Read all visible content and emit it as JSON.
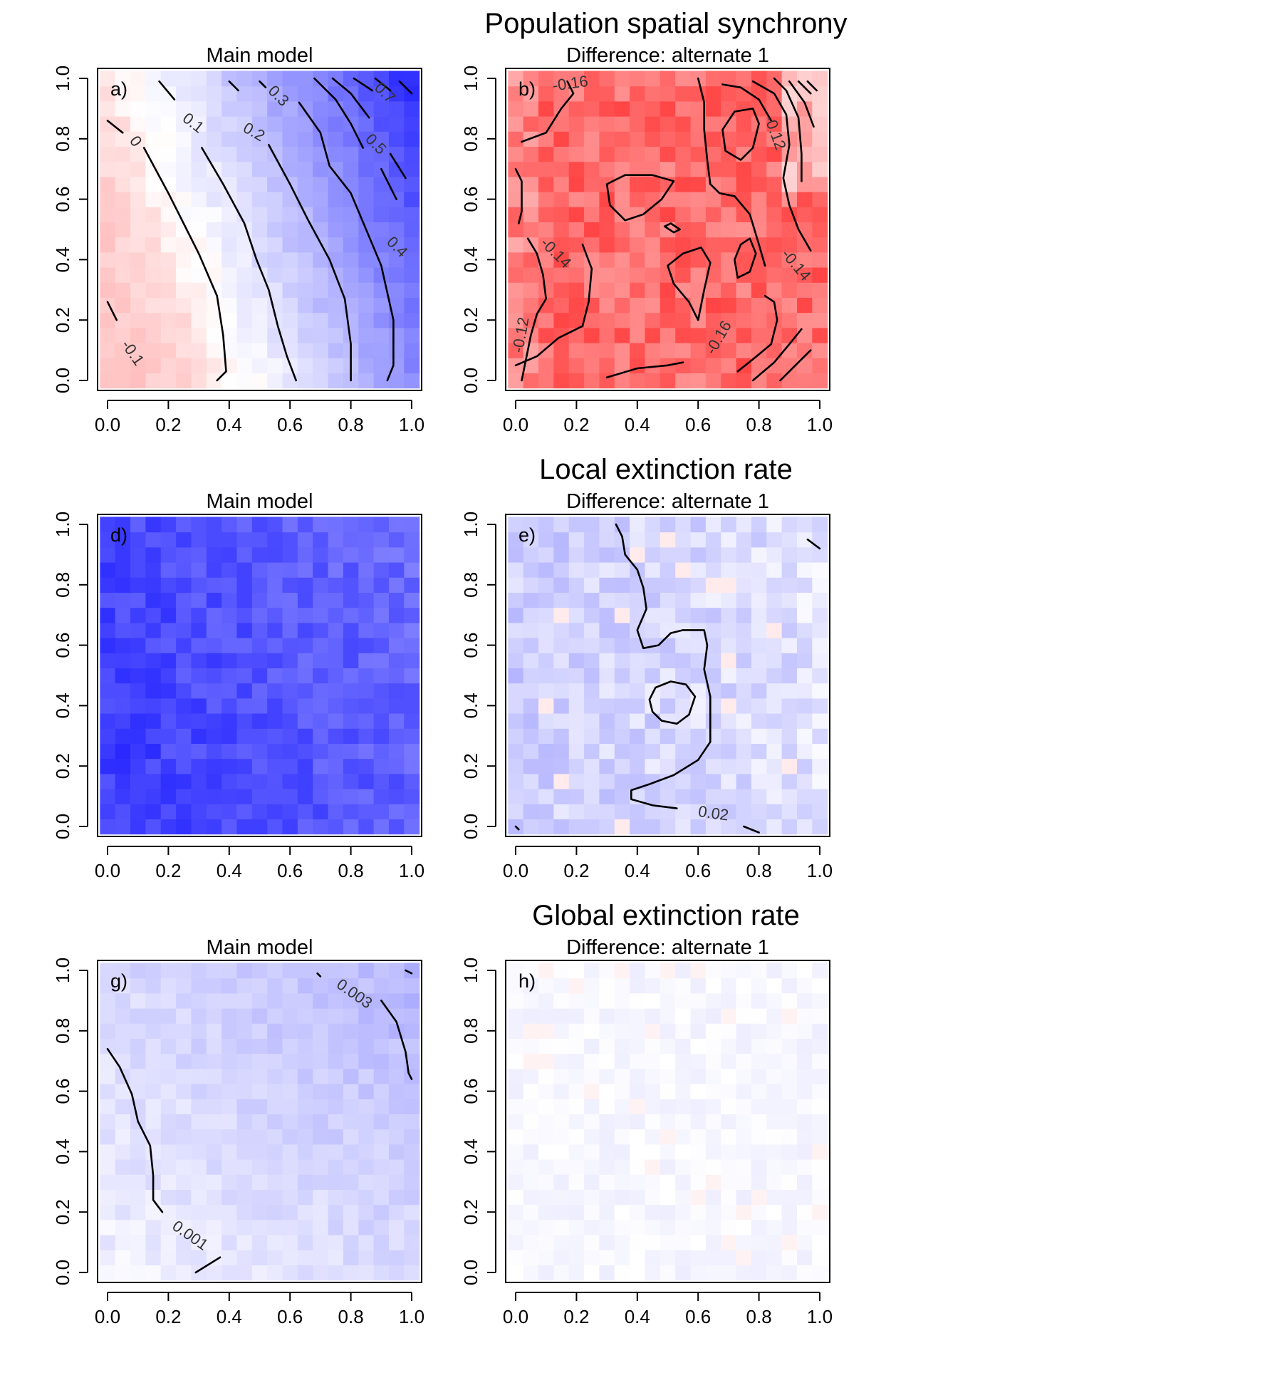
{
  "chart_data": [
    {
      "type": "heatmap",
      "row_title": "Population spatial synchrony",
      "panels": [
        {
          "id": "a",
          "letter": "a)",
          "title": "Main model",
          "grid": "main_sync",
          "contour_labels": [
            {
              "text": "0",
              "x": 0.09,
              "y": 0.79,
              "angle": 55
            },
            {
              "text": "0.1",
              "x": 0.28,
              "y": 0.85,
              "angle": 38
            },
            {
              "text": "0.2",
              "x": 0.48,
              "y": 0.82,
              "angle": 30
            },
            {
              "text": "0.3",
              "x": 0.56,
              "y": 0.94,
              "angle": 45
            },
            {
              "text": "0.5",
              "x": 0.88,
              "y": 0.78,
              "angle": 45
            },
            {
              "text": "0.7",
              "x": 0.91,
              "y": 0.95,
              "angle": 45
            },
            {
              "text": "0.4",
              "x": 0.95,
              "y": 0.44,
              "angle": 45
            },
            {
              "text": "-0.1",
              "x": 0.08,
              "y": 0.09,
              "angle": 55
            }
          ]
        },
        {
          "id": "b",
          "letter": "b)",
          "title": "Difference: alternate 1",
          "grid": "diff_sync",
          "contour_labels": [
            {
              "text": "-0.16",
              "x": 0.18,
              "y": 0.98,
              "angle": -8
            },
            {
              "text": "-0.12",
              "x": 0.85,
              "y": 0.82,
              "angle": 70
            },
            {
              "text": "-0.14",
              "x": 0.13,
              "y": 0.42,
              "angle": 45
            },
            {
              "text": "-0.14",
              "x": 0.92,
              "y": 0.38,
              "angle": 50
            },
            {
              "text": "-0.12",
              "x": 0.02,
              "y": 0.15,
              "angle": -80
            },
            {
              "text": "-0.16",
              "x": 0.67,
              "y": 0.14,
              "angle": -60
            }
          ]
        }
      ]
    },
    {
      "type": "heatmap",
      "row_title": "Local extinction rate",
      "panels": [
        {
          "id": "d",
          "letter": "d)",
          "title": "Main model",
          "grid": "main_local",
          "contour_labels": []
        },
        {
          "id": "e",
          "letter": "e)",
          "title": "Difference: alternate 1",
          "grid": "diff_local",
          "contour_labels": [
            {
              "text": "0.02",
              "x": 0.65,
              "y": 0.04,
              "angle": 8
            }
          ]
        }
      ]
    },
    {
      "type": "heatmap",
      "row_title": "Global extinction rate",
      "panels": [
        {
          "id": "g",
          "letter": "g)",
          "title": "Main model",
          "grid": "main_global",
          "contour_labels": [
            {
              "text": "0.003",
              "x": 0.81,
              "y": 0.92,
              "angle": 35
            },
            {
              "text": "0.001",
              "x": 0.27,
              "y": 0.12,
              "angle": 35
            }
          ]
        },
        {
          "id": "h",
          "letter": "h)",
          "title": "Difference: alternate 1",
          "grid": "diff_global",
          "contour_labels": []
        }
      ]
    }
  ],
  "axes": {
    "xlim": [
      0,
      1
    ],
    "ylim": [
      0,
      1
    ],
    "ticks": [
      0.0,
      0.2,
      0.4,
      0.6,
      0.8,
      1.0
    ],
    "tick_labels": [
      "0.0",
      "0.2",
      "0.4",
      "0.6",
      "0.8",
      "1.0"
    ],
    "grid_cells": 21
  },
  "colors": {
    "negative": "#ff0000",
    "neutral": "#ffffff",
    "positive": "#0000ff",
    "contour": "#000000"
  }
}
